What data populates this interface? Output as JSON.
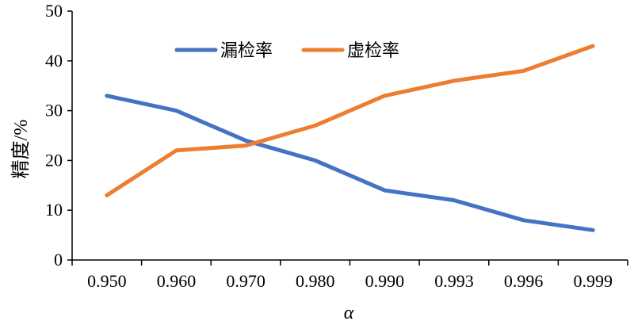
{
  "chart_data": {
    "type": "line",
    "categories": [
      "0.950",
      "0.960",
      "0.970",
      "0.980",
      "0.990",
      "0.993",
      "0.996",
      "0.999"
    ],
    "series": [
      {
        "name": "漏检率",
        "values": [
          33,
          30,
          24,
          20,
          14,
          12,
          8,
          6
        ],
        "color": "#4472C4"
      },
      {
        "name": "虚检率",
        "values": [
          13,
          22,
          23,
          27,
          33,
          36,
          38,
          43
        ],
        "color": "#ED7D31"
      }
    ],
    "xlabel": "α",
    "ylabel": "精度/%",
    "ylim": [
      0,
      50
    ],
    "yticks": [
      0,
      10,
      20,
      30,
      40,
      50
    ],
    "grid": false,
    "legend_position": "top-center"
  }
}
